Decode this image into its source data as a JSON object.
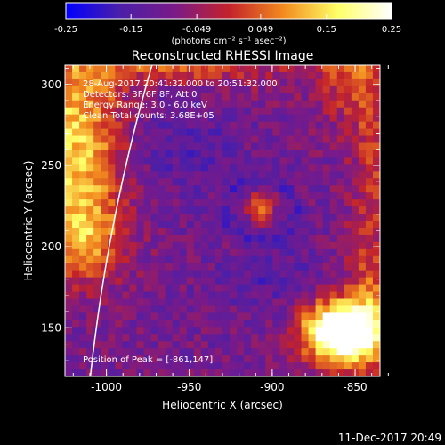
{
  "chart_data": {
    "type": "heatmap",
    "title": "Reconstructed RHESSI Image",
    "xlabel": "Heliocentric X (arcsec)",
    "ylabel": "Heliocentric Y (arcsec)",
    "xlim": [
      -1025,
      -835
    ],
    "ylim": [
      120,
      312
    ],
    "x_ticks": [
      -1000,
      -950,
      -900,
      -850
    ],
    "x_tick_labels": [
      "-1000",
      "-950",
      "-900",
      "-850"
    ],
    "y_ticks": [
      150,
      200,
      250,
      300
    ],
    "y_tick_labels": [
      "150",
      "200",
      "250",
      "300"
    ],
    "colorbar": {
      "range": [
        -0.25,
        0.25
      ],
      "ticks": [
        -0.25,
        -0.15,
        -0.049,
        0.049,
        0.15,
        0.25
      ],
      "tick_labels": [
        "-0.25",
        "-0.15",
        "-0.049",
        "0.049",
        "0.15",
        "0.25"
      ],
      "unit_label": "(photons cm⁻² s⁻¹ asec⁻²)",
      "stops": [
        "#0000ff",
        "#4b1fa8",
        "#7a1a88",
        "#c3222b",
        "#f28a1e",
        "#ffff66",
        "#ffffff"
      ]
    },
    "annotations": {
      "time_range": "28-Aug-2017 20:41:32.000 to 20:51:32.000",
      "detectors": "Detectors: 3F 6F 8F, Att 0",
      "energy": "Energy Range: 3.0 - 6.0 keV",
      "clean": "Clean    Total counts: 3.68E+05",
      "peak": "Position of Peak = [-861,147]"
    },
    "peak": {
      "x": -861,
      "y": 147
    },
    "limb_color": "#ffffff",
    "footer": "11-Dec-2017 20:49"
  }
}
